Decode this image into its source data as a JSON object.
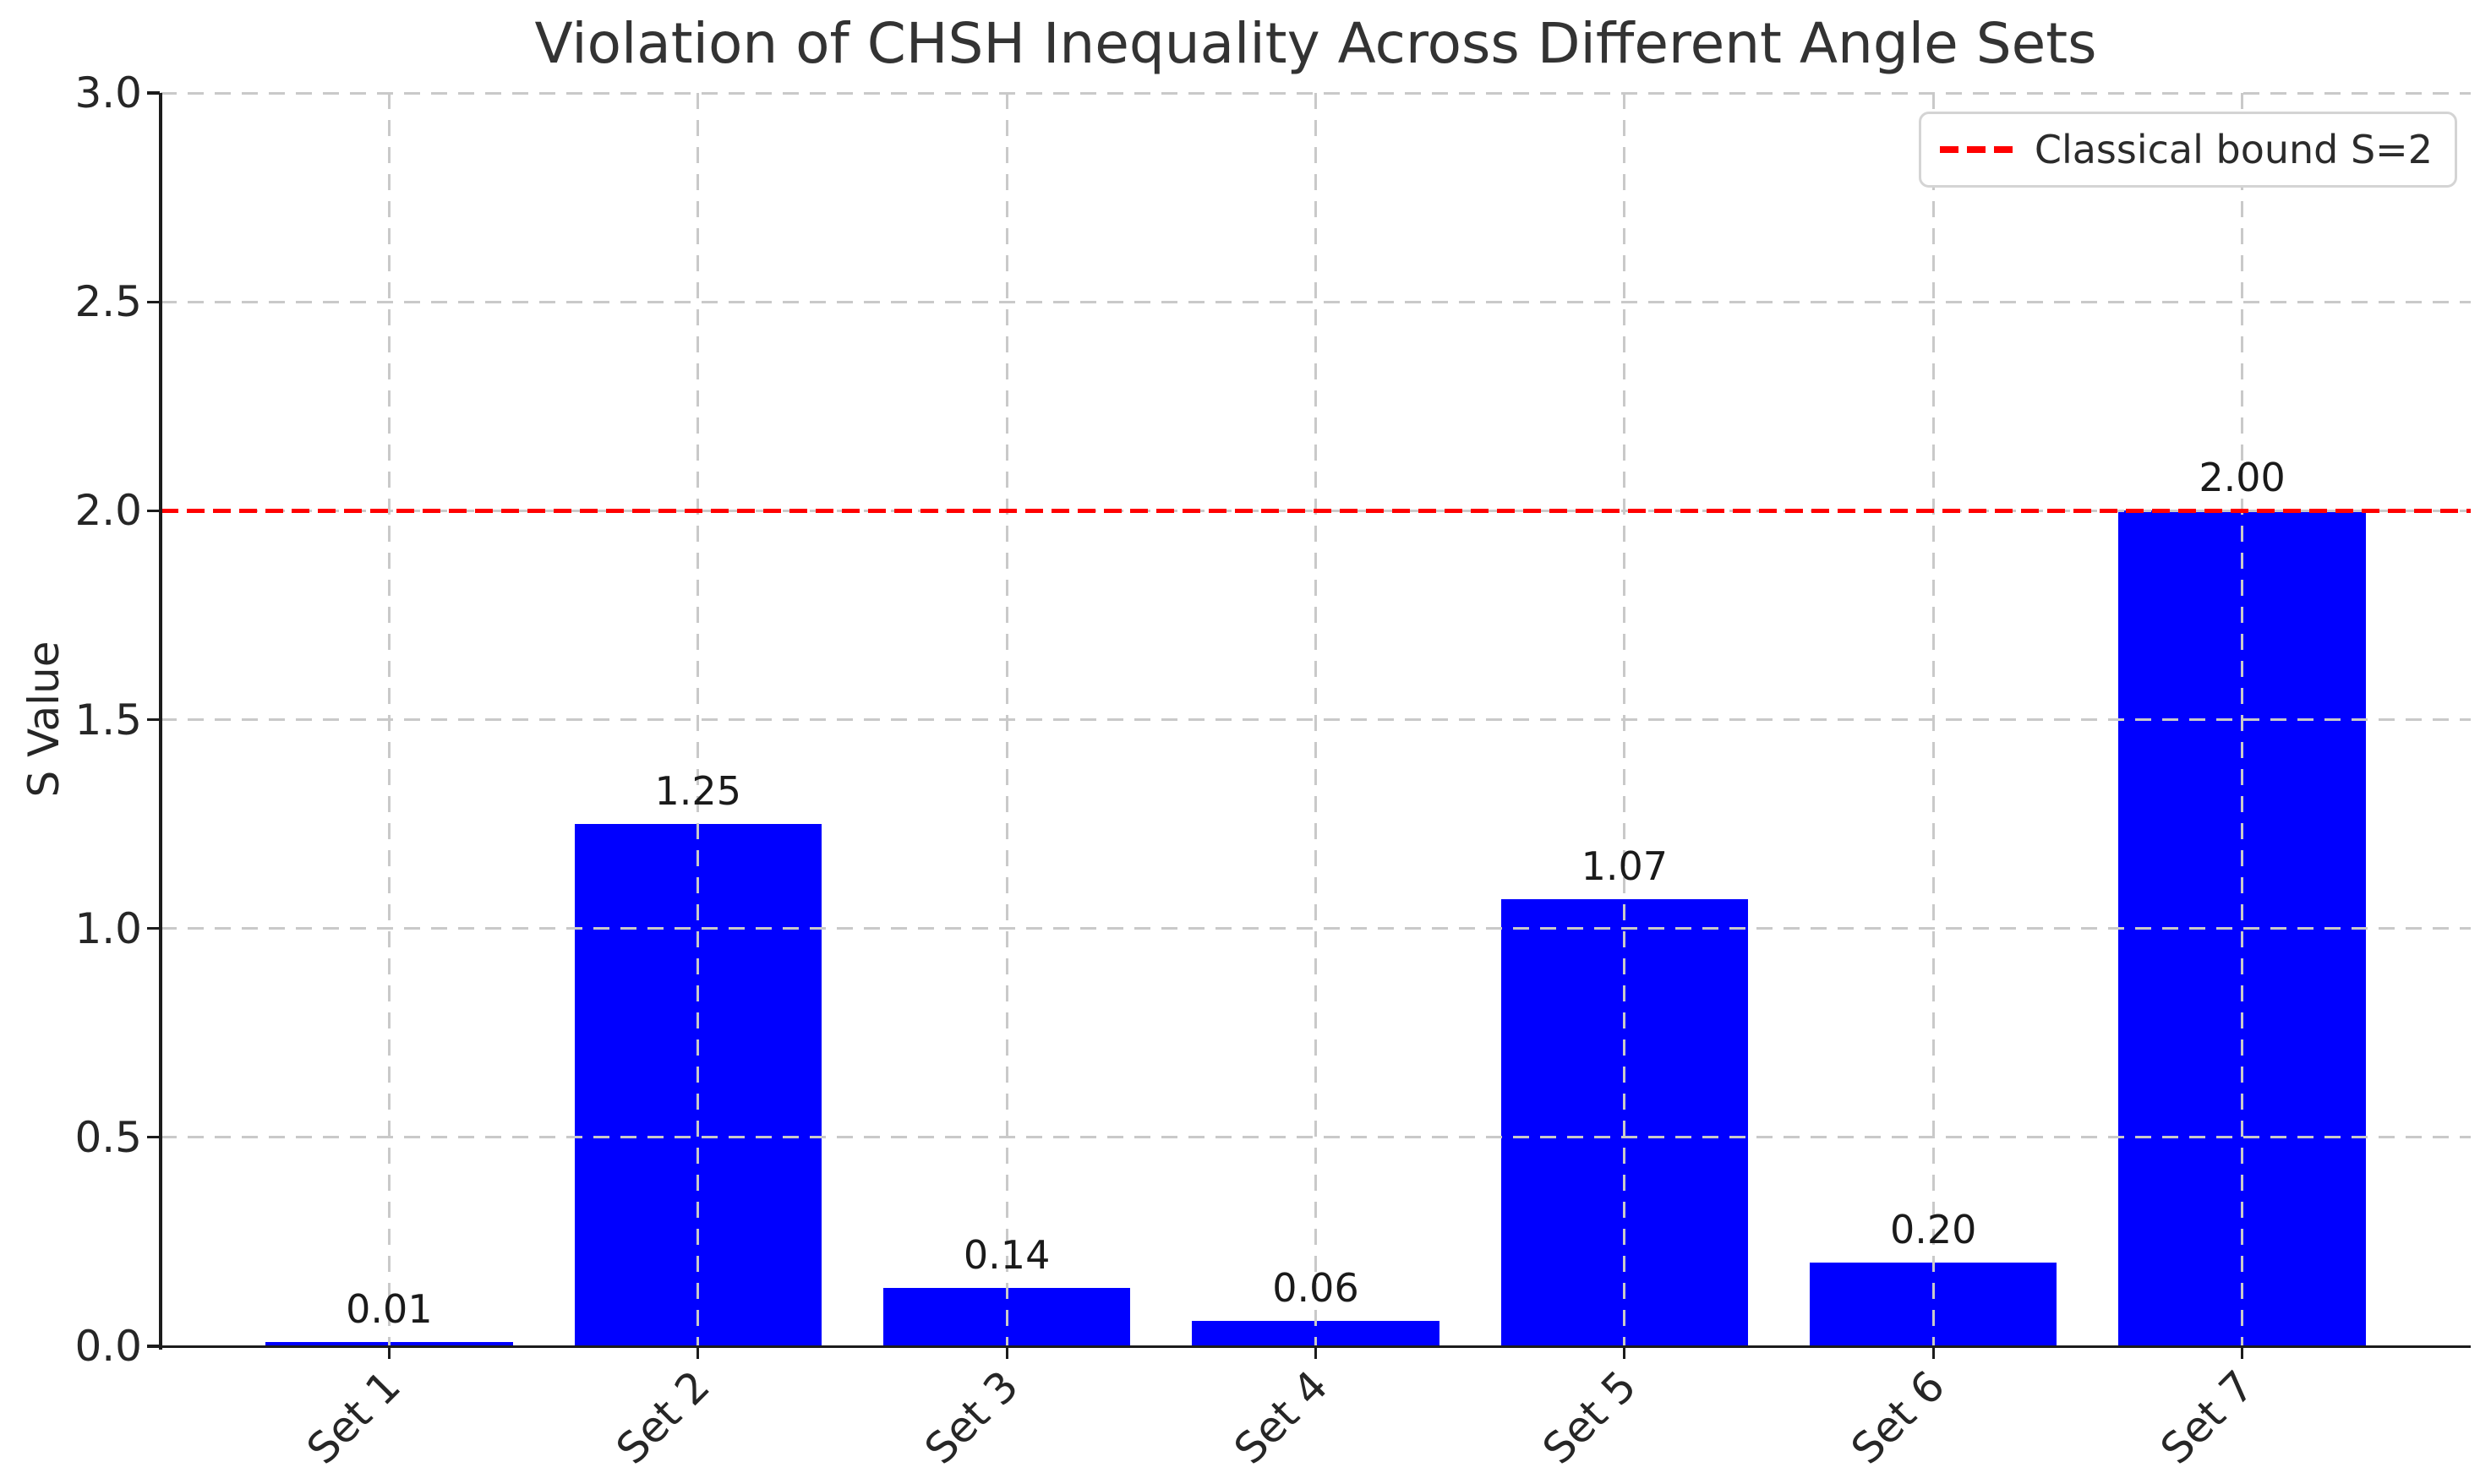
{
  "chart_data": {
    "type": "bar",
    "title": "Violation of CHSH Inequality Across Different Angle Sets",
    "ylabel": "S Value",
    "categories": [
      "Set 1",
      "Set 2",
      "Set 3",
      "Set 4",
      "Set 5",
      "Set 6",
      "Set 7"
    ],
    "values": [
      0.01,
      1.25,
      0.14,
      0.06,
      1.07,
      0.2,
      2.0
    ],
    "value_labels": [
      "0.01",
      "1.25",
      "0.14",
      "0.06",
      "1.07",
      "0.20",
      "2.00"
    ],
    "ylim": [
      0,
      3
    ],
    "ytick_values": [
      0.0,
      0.5,
      1.0,
      1.5,
      2.0,
      2.5,
      3.0
    ],
    "ytick_labels": [
      "0.0",
      "0.5",
      "1.0",
      "1.5",
      "2.0",
      "2.5",
      "3.0"
    ],
    "xtick_rotation_deg": 45,
    "grid": true,
    "grid_style": "dashed",
    "bar_color": "#0000ff",
    "grid_color": "#c9c9c9",
    "reference_line": {
      "value": 2.0,
      "color": "#ff0000",
      "style": "dashed",
      "label": "Classical bound S=2"
    },
    "legend_position": "upper right"
  }
}
